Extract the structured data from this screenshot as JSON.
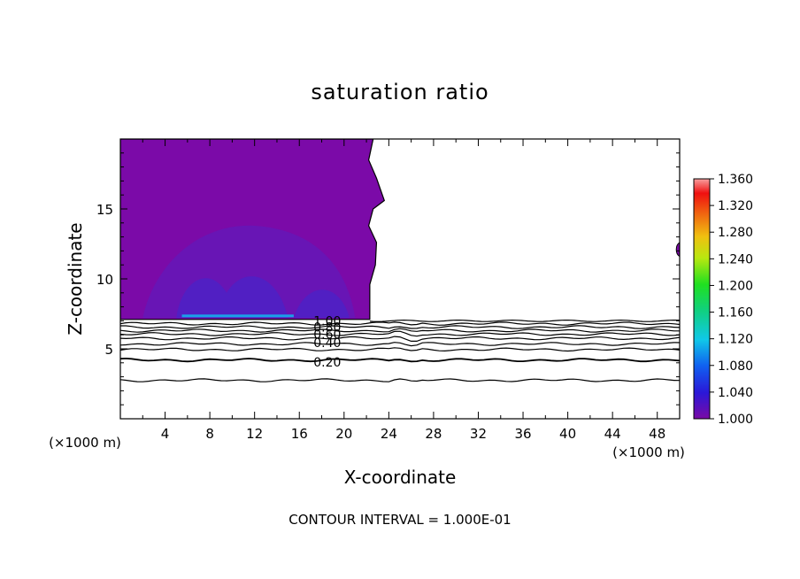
{
  "chart_data": {
    "type": "heatmap",
    "title": "saturation ratio",
    "xlabel": "X-coordinate",
    "ylabel": "Z-coordinate",
    "x_unit_left": "(×1000 m)",
    "x_unit_right": "(×1000 m)",
    "xlim": [
      0,
      50
    ],
    "ylim": [
      0,
      20
    ],
    "x_ticks": [
      4,
      8,
      12,
      16,
      20,
      24,
      28,
      32,
      36,
      40,
      44,
      48
    ],
    "y_ticks": [
      5,
      10,
      15
    ],
    "footer": "CONTOUR INTERVAL = 1.000E-01",
    "colorbar": {
      "min": 1.0,
      "max": 1.36,
      "ticks": [
        "1.360",
        "1.320",
        "1.280",
        "1.240",
        "1.200",
        "1.160",
        "1.120",
        "1.080",
        "1.040",
        "1.000"
      ]
    },
    "contour_labels": [
      {
        "text": "1.00",
        "x": 18.5,
        "y": 7.05
      },
      {
        "text": "0.80",
        "x": 18.5,
        "y": 6.6
      },
      {
        "text": "0.60",
        "x": 18.5,
        "y": 6.1
      },
      {
        "text": "0.40",
        "x": 18.5,
        "y": 5.5
      },
      {
        "text": "0.20",
        "x": 18.5,
        "y": 4.1
      }
    ],
    "contour_lines": [
      {
        "level": 0.9,
        "z": 6.8
      },
      {
        "level": 0.8,
        "z": 6.55
      },
      {
        "level": 0.7,
        "z": 6.3
      },
      {
        "level": 0.6,
        "z": 6.05
      },
      {
        "level": 0.5,
        "z": 5.75
      },
      {
        "level": 0.4,
        "z": 5.35
      },
      {
        "level": 0.3,
        "z": 4.95
      },
      {
        "level": 0.2,
        "z": 4.2
      },
      {
        "level": 0.1,
        "z": 2.75
      }
    ],
    "supersaturated_region": {
      "x_from": 0,
      "x_to": 22,
      "z_from": 7.1,
      "z_to": 20,
      "value": 1.005
    },
    "colors": {
      "base": "#7b0aa8",
      "mid": "#5a1fc0",
      "deep": "#3a2ad2",
      "peak": "#1aa0e8"
    }
  }
}
